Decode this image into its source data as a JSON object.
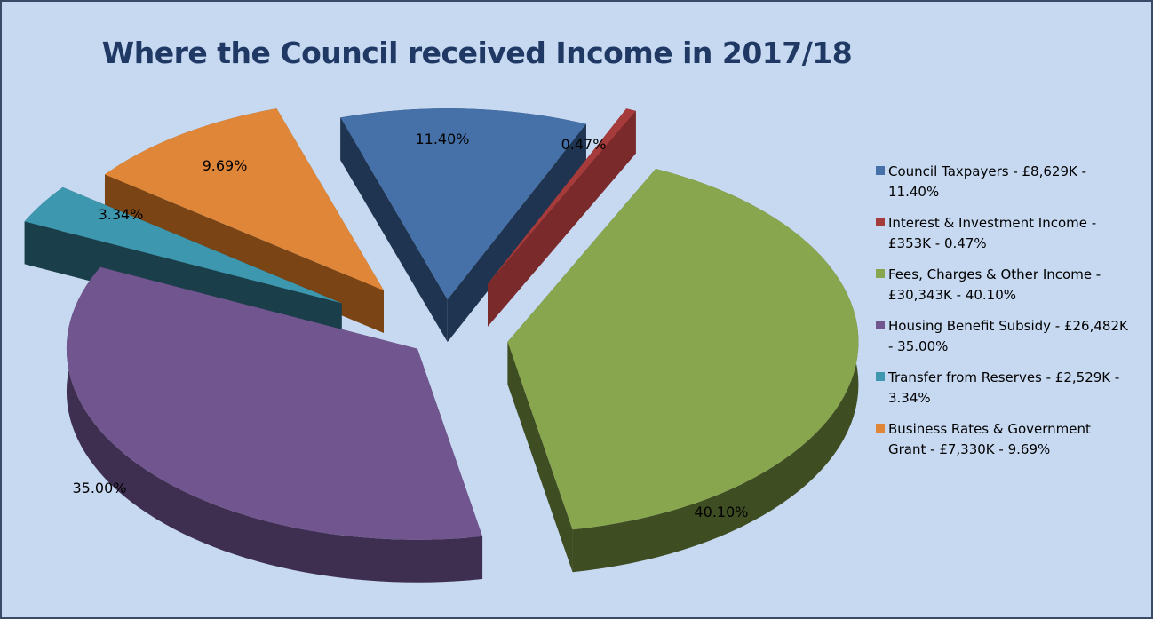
{
  "chart_data": {
    "type": "pie",
    "title": "Where the Council received Income in 2017/18",
    "slices": [
      {
        "name": "Council Taxpayers",
        "amount": "£8,629K",
        "value": 11.4,
        "label": "11.40%",
        "legend": "Council Taxpayers - £8,629K - 11.40%",
        "color": "#4571a8",
        "side_color": "#1f3450"
      },
      {
        "name": "Interest & Investment Income",
        "amount": "£353K",
        "value": 0.47,
        "label": "0.47%",
        "legend": "Interest & Investment Income - £353K - 0.47%",
        "color": "#a53b3a",
        "side_color": "#7a2a2a"
      },
      {
        "name": "Fees, Charges & Other Income",
        "amount": "£30,343K",
        "value": 40.1,
        "label": "40.10%",
        "legend": "Fees, Charges & Other Income - £30,343K - 40.10%",
        "color": "#88a64d",
        "side_color": "#3f4d22"
      },
      {
        "name": "Housing Benefit Subsidy",
        "amount": "£26,482K",
        "value": 35.0,
        "label": "35.00%",
        "legend": "Housing Benefit Subsidy - £26,482K - 35.00%",
        "color": "#71558f",
        "side_color": "#3e2f51"
      },
      {
        "name": "Transfer from Reserves",
        "amount": "£2,529K",
        "value": 3.34,
        "label": "3.34%",
        "legend": "Transfer from Reserves - £2,529K - 3.34%",
        "color": "#3d97ae",
        "side_color": "#1a3f4a"
      },
      {
        "name": "Business Rates & Government Grant",
        "amount": "£7,330K",
        "value": 9.69,
        "label": "9.69%",
        "legend": "Business Rates & Government Grant - £7,330K - 9.69%",
        "color": "#df8638",
        "side_color": "#7a4414"
      }
    ],
    "legend_position": "right"
  }
}
